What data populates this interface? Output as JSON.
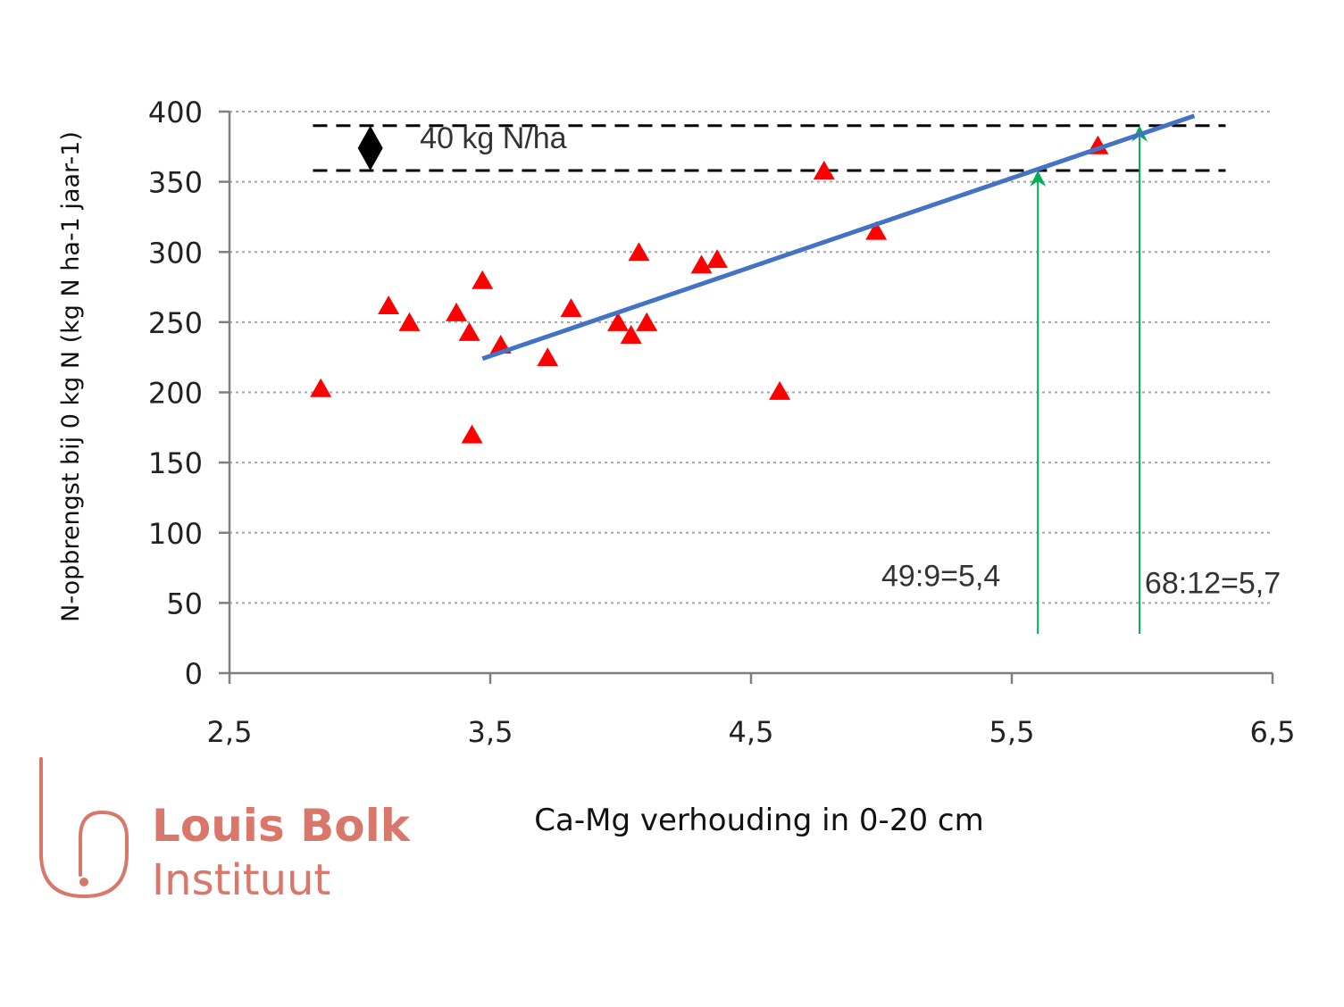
{
  "chart_data": {
    "type": "scatter",
    "title": "",
    "xlabel": "Ca-Mg verhouding in 0-20 cm",
    "ylabel": "N-opbrengst bij 0 kg N (kg N ha-1 jaar-1)",
    "xlim": [
      2.5,
      6.5
    ],
    "ylim": [
      0,
      400
    ],
    "x_ticks": [
      2.5,
      3.5,
      4.5,
      5.5,
      6.5
    ],
    "x_tick_labels": [
      "2,5",
      "3,5",
      "4,5",
      "5,5",
      "6,5"
    ],
    "y_ticks": [
      0,
      50,
      100,
      150,
      200,
      250,
      300,
      350,
      400
    ],
    "y_tick_labels": [
      "0",
      "50",
      "100",
      "150",
      "200",
      "250",
      "300",
      "350",
      "400"
    ],
    "grid": "horizontal dotted",
    "points": [
      {
        "x": 2.85,
        "y": 203
      },
      {
        "x": 3.11,
        "y": 262
      },
      {
        "x": 3.19,
        "y": 250
      },
      {
        "x": 3.37,
        "y": 257
      },
      {
        "x": 3.42,
        "y": 243
      },
      {
        "x": 3.43,
        "y": 170
      },
      {
        "x": 3.47,
        "y": 280
      },
      {
        "x": 3.54,
        "y": 234
      },
      {
        "x": 3.72,
        "y": 225
      },
      {
        "x": 3.81,
        "y": 260
      },
      {
        "x": 3.99,
        "y": 250
      },
      {
        "x": 4.04,
        "y": 241
      },
      {
        "x": 4.07,
        "y": 300
      },
      {
        "x": 4.1,
        "y": 250
      },
      {
        "x": 4.31,
        "y": 291
      },
      {
        "x": 4.37,
        "y": 295
      },
      {
        "x": 4.61,
        "y": 201
      },
      {
        "x": 4.78,
        "y": 358
      },
      {
        "x": 4.98,
        "y": 315
      },
      {
        "x": 5.83,
        "y": 376
      }
    ],
    "trendline": {
      "x": [
        3.47,
        6.2
      ],
      "y": [
        224,
        397
      ]
    },
    "reference_lines": [
      {
        "y": 390,
        "x": [
          2.82,
          6.32
        ],
        "style": "dashed"
      },
      {
        "y": 358,
        "x": [
          2.82,
          6.32
        ],
        "style": "dashed"
      }
    ],
    "arrows": [
      {
        "x": 5.6,
        "y_from": 28,
        "y_to": 358
      },
      {
        "x": 5.99,
        "y_from": 28,
        "y_to": 390
      }
    ],
    "annotations": [
      {
        "text": "40 kg N/ha",
        "x": 3.23,
        "y": 374
      },
      {
        "text": "49:9=5,4",
        "x": 5.0,
        "y": 62
      },
      {
        "text": "68:12=5,7",
        "x": 6.01,
        "y": 57
      }
    ],
    "colors": {
      "points": "#ff0000",
      "trendline": "#4472c4",
      "arrows": "#00b050",
      "reference_lines": "#000000",
      "grid": "#a6a6a6",
      "axis": "#7f7f7f"
    }
  },
  "logo": {
    "line1": "Louis Bolk",
    "line2": "Instituut",
    "color": "#d9776a"
  }
}
